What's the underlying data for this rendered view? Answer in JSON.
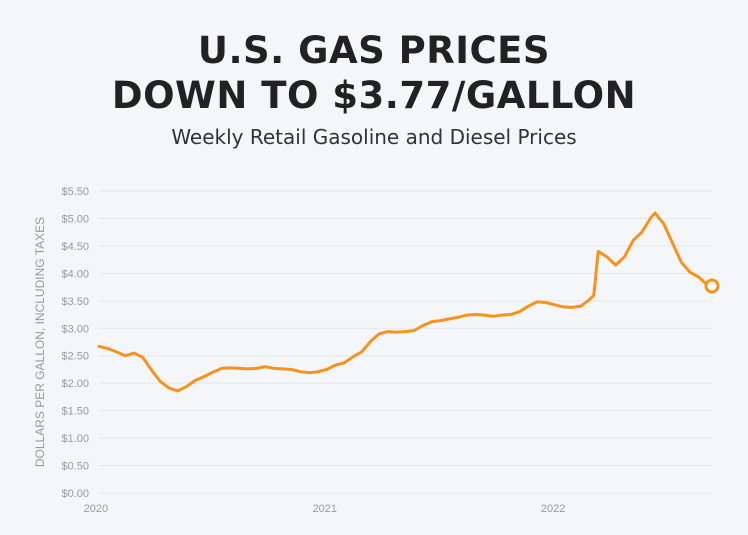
{
  "header": {
    "title_line1": "U.S. GAS PRICES",
    "title_line2": "DOWN TO $3.77/GALLON",
    "subtitle": "Weekly Retail Gasoline and Diesel Prices"
  },
  "colors": {
    "line": "#f7921e",
    "grid": "#e3e6ea",
    "axis_text": "#9a9a9a",
    "background": "#f4f6f9"
  },
  "chart_data": {
    "type": "line",
    "title": "U.S. GAS PRICES DOWN TO $3.77/GALLON",
    "subtitle": "Weekly Retail Gasoline and Diesel Prices",
    "ylabel": "DOLLARS PER GALLON, INCLUDING TAXES",
    "xlabel": "",
    "xlim": [
      "2020-01-06",
      "2022-09-12"
    ],
    "ylim": [
      0,
      5.5
    ],
    "grid": true,
    "x_tick_labels": [
      "2020",
      "2021",
      "2022"
    ],
    "y_tick_labels": [
      "$0.00",
      "$0.50",
      "$1.00",
      "$1.50",
      "$2.00",
      "$2.50",
      "$3.00",
      "$3.50",
      "$4.00",
      "$4.50",
      "$5.00",
      "$5.50"
    ],
    "series": [
      {
        "x": [
          "2020-01-06",
          "2020-01-20",
          "2020-02-03",
          "2020-02-17",
          "2020-03-02",
          "2020-03-16",
          "2020-03-30",
          "2020-04-13",
          "2020-04-27",
          "2020-05-11",
          "2020-05-25",
          "2020-06-08",
          "2020-06-22",
          "2020-07-06",
          "2020-07-20",
          "2020-08-03",
          "2020-08-17",
          "2020-08-31",
          "2020-09-14",
          "2020-09-28",
          "2020-10-12",
          "2020-10-26",
          "2020-11-09",
          "2020-11-23",
          "2020-12-07",
          "2020-12-21",
          "2021-01-04",
          "2021-01-18",
          "2021-02-01",
          "2021-02-15",
          "2021-03-01",
          "2021-03-15",
          "2021-03-29",
          "2021-04-12",
          "2021-04-26",
          "2021-05-10",
          "2021-05-24",
          "2021-06-07",
          "2021-06-21",
          "2021-07-05",
          "2021-07-19",
          "2021-08-02",
          "2021-08-16",
          "2021-08-30",
          "2021-09-13",
          "2021-09-27",
          "2021-10-11",
          "2021-10-25",
          "2021-11-08",
          "2021-11-22",
          "2021-12-06",
          "2021-12-20",
          "2022-01-03",
          "2022-01-17",
          "2022-01-31",
          "2022-02-14",
          "2022-02-28",
          "2022-03-07",
          "2022-03-14",
          "2022-03-28",
          "2022-04-11",
          "2022-04-25",
          "2022-05-09",
          "2022-05-23",
          "2022-06-06",
          "2022-06-13",
          "2022-06-27",
          "2022-07-11",
          "2022-07-25",
          "2022-08-08",
          "2022-08-22",
          "2022-09-05",
          "2022-09-12"
        ],
        "y": [
          2.67,
          2.63,
          2.57,
          2.5,
          2.55,
          2.47,
          2.24,
          2.03,
          1.91,
          1.86,
          1.94,
          2.05,
          2.12,
          2.2,
          2.27,
          2.28,
          2.27,
          2.26,
          2.27,
          2.3,
          2.27,
          2.26,
          2.25,
          2.21,
          2.19,
          2.21,
          2.25,
          2.33,
          2.37,
          2.48,
          2.57,
          2.76,
          2.9,
          2.94,
          2.93,
          2.94,
          2.96,
          3.05,
          3.12,
          3.14,
          3.17,
          3.2,
          3.24,
          3.25,
          3.24,
          3.22,
          3.24,
          3.25,
          3.3,
          3.4,
          3.48,
          3.47,
          3.43,
          3.39,
          3.38,
          3.4,
          3.52,
          3.6,
          4.4,
          4.3,
          4.15,
          4.3,
          4.6,
          4.75,
          5.01,
          5.1,
          4.9,
          4.55,
          4.2,
          4.02,
          3.93,
          3.78,
          3.77
        ]
      }
    ],
    "annotations": [
      {
        "type": "endpoint-marker",
        "x": "2022-09-12",
        "y": 3.77
      }
    ]
  }
}
